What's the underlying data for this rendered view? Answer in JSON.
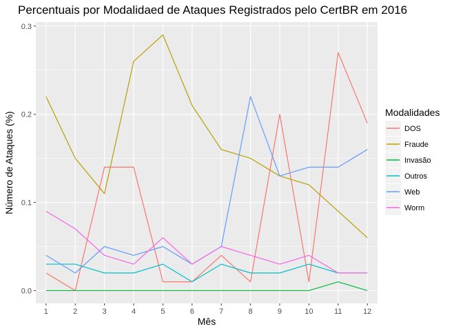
{
  "chart_data": {
    "type": "line",
    "title": "Percentuais por Modalidaed de Ataques Registrados pelo CertBR em 2016",
    "xlabel": "Mês",
    "ylabel": "Número de Ataques (%)",
    "x": [
      1,
      2,
      3,
      4,
      5,
      6,
      7,
      8,
      9,
      10,
      11,
      12
    ],
    "x_tick_labels": [
      "1",
      "2",
      "3",
      "4",
      "5",
      "6",
      "7",
      "8",
      "9",
      "10",
      "11",
      "12"
    ],
    "xlim": [
      0.65,
      12.35
    ],
    "ylim": [
      -0.0145,
      0.3045
    ],
    "y_ticks": [
      0.0,
      0.1,
      0.2,
      0.3
    ],
    "y_tick_labels": [
      "0.0",
      "0.1",
      "0.2",
      "0.3"
    ],
    "grid": true,
    "legend": {
      "title": "Modalidades",
      "position": "right"
    },
    "series": [
      {
        "name": "DOS",
        "color": "#F8766D",
        "values": [
          0.02,
          0.0,
          0.14,
          0.14,
          0.01,
          0.01,
          0.04,
          0.01,
          0.2,
          0.01,
          0.27,
          0.19
        ]
      },
      {
        "name": "Fraude",
        "color": "#B79F00",
        "values": [
          0.22,
          0.15,
          0.11,
          0.26,
          0.29,
          0.21,
          0.16,
          0.15,
          0.13,
          0.12,
          0.09,
          0.06
        ]
      },
      {
        "name": "Invasão",
        "color": "#00BA38",
        "values": [
          0.0,
          0.0,
          0.0,
          0.0,
          0.0,
          0.0,
          0.0,
          0.0,
          0.0,
          0.0,
          0.01,
          0.0
        ]
      },
      {
        "name": "Outros",
        "color": "#00BFC4",
        "values": [
          0.03,
          0.03,
          0.02,
          0.02,
          0.03,
          0.01,
          0.03,
          0.02,
          0.02,
          0.03,
          0.02,
          0.02
        ]
      },
      {
        "name": "Web",
        "color": "#619CFF",
        "values": [
          0.04,
          0.02,
          0.05,
          0.04,
          0.05,
          0.03,
          0.05,
          0.22,
          0.13,
          0.14,
          0.14,
          0.16
        ]
      },
      {
        "name": "Worm",
        "color": "#F564E3",
        "values": [
          0.09,
          0.07,
          0.04,
          0.03,
          0.06,
          0.03,
          0.05,
          0.04,
          0.03,
          0.04,
          0.02,
          0.02
        ]
      }
    ]
  }
}
